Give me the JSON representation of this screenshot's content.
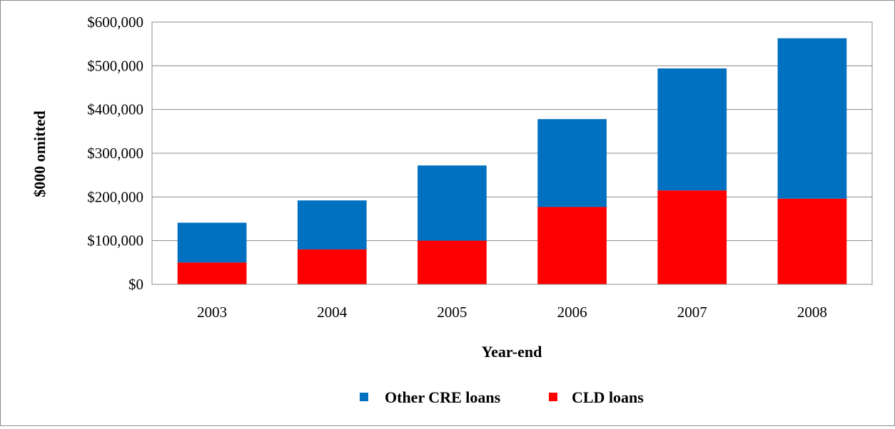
{
  "chart_data": {
    "type": "bar",
    "stacked": true,
    "categories": [
      "2003",
      "2004",
      "2005",
      "2006",
      "2007",
      "2008"
    ],
    "series": [
      {
        "name": "CLD loans",
        "values": [
          50000,
          80000,
          100000,
          177000,
          215000,
          196000
        ],
        "color": "#ff0000"
      },
      {
        "name": "Other CRE loans",
        "values": [
          91000,
          112000,
          172000,
          201000,
          279000,
          367000
        ],
        "color": "#0070c0"
      }
    ],
    "title": "",
    "xlabel": "Year-end",
    "ylabel": "$000  omitted",
    "ylim": [
      0,
      600000
    ],
    "yticks": [
      0,
      100000,
      200000,
      300000,
      400000,
      500000,
      600000
    ],
    "ytick_labels": [
      "$0",
      "$100,000",
      "$200,000",
      "$300,000",
      "$400,000",
      "$500,000",
      "$600,000"
    ],
    "grid": true,
    "legend_position": "bottom",
    "legend_order": [
      "Other CRE loans",
      "CLD loans"
    ]
  }
}
